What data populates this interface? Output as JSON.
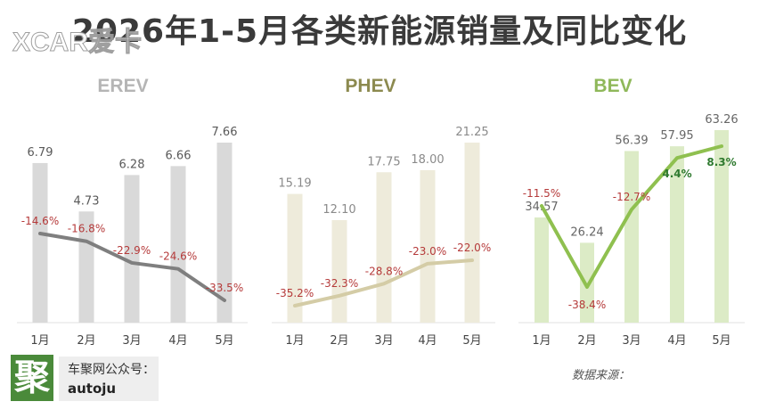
{
  "title": "2026年1-5月各类新能源销量及同比变化",
  "watermark": "XCAR爱卡",
  "brand": {
    "logo_char": "聚",
    "line1": "车聚网公众号：",
    "line2": "autoju"
  },
  "source_label": "数据来源：",
  "chart_data": [
    {
      "type": "bar",
      "title": "EREV",
      "categories": [
        "1月",
        "2月",
        "3月",
        "4月",
        "5月"
      ],
      "series": [
        {
          "values": [
            6.79,
            4.73,
            6.28,
            6.66,
            7.66
          ]
        },
        {
          "values": [
            -14.6,
            -16.8,
            -22.9,
            -24.6,
            -33.5
          ]
        }
      ],
      "bar_labels": [
        "6.79",
        "4.73",
        "6.28",
        "6.66",
        "7.66"
      ],
      "line_labels": [
        "-14.6%",
        "-16.8%",
        "-22.9%",
        "-24.6%",
        "-33.5%"
      ],
      "colors": {
        "title": "#b5b5b5",
        "bar": "#d9d9d9",
        "line": "#7f7f7f",
        "value": "#595959",
        "pct": "#b53a3a"
      }
    },
    {
      "type": "bar",
      "title": "PHEV",
      "categories": [
        "1月",
        "2月",
        "3月",
        "4月",
        "5月"
      ],
      "series": [
        {
          "values": [
            15.19,
            12.1,
            17.75,
            18.0,
            21.25
          ]
        },
        {
          "values": [
            -35.2,
            -32.3,
            -28.8,
            -23.0,
            -22.0
          ]
        }
      ],
      "bar_labels": [
        "15.19",
        "12.10",
        "17.75",
        "18.00",
        "21.25"
      ],
      "line_labels": [
        "-35.2%",
        "-32.3%",
        "-28.8%",
        "-23.0%",
        "-22.0%"
      ],
      "colors": {
        "title": "#8c8a4f",
        "bar": "#eeebdb",
        "line": "#d4cca6",
        "value": "#8a8a8a",
        "pct": "#b53a3a"
      }
    },
    {
      "type": "bar",
      "title": "BEV",
      "categories": [
        "1月",
        "2月",
        "3月",
        "4月",
        "5月"
      ],
      "series": [
        {
          "values": [
            34.57,
            26.24,
            56.39,
            57.95,
            63.26
          ]
        },
        {
          "values": [
            -11.5,
            -38.4,
            -12.7,
            4.4,
            8.3
          ]
        }
      ],
      "bar_labels": [
        "34.57",
        "26.24",
        "56.39",
        "57.95",
        "63.26"
      ],
      "line_labels": [
        "-11.5%",
        "-38.4%",
        "-12.7%",
        "4.4%",
        "8.3%"
      ],
      "colors": {
        "title": "#8fb85a",
        "bar": "#dcebc6",
        "line": "#8fc04f",
        "value": "#666666",
        "pct": "#b53a3a",
        "pct_positive": "#2f7a2f"
      }
    }
  ]
}
